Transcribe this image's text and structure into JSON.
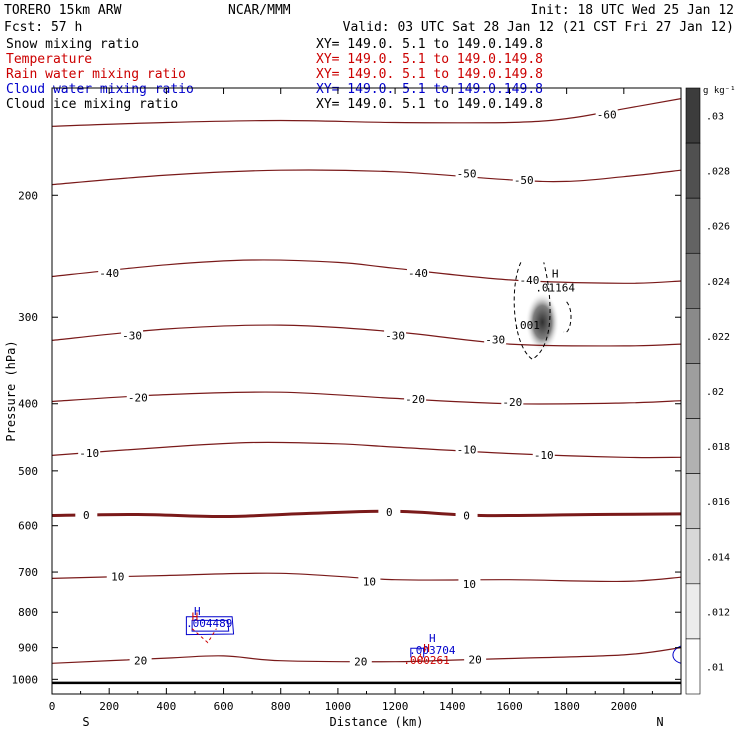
{
  "header": {
    "model_line": "TORERO  15km ARW",
    "fcst_line": "Fcst:   57 h",
    "org": "NCAR/MMM",
    "init": "Init: 18 UTC Wed 25 Jan 12",
    "valid": "Valid: 03 UTC Sat 28 Jan 12 (21 CST Fri 27 Jan 12)",
    "fields": [
      {
        "name": "Snow mixing ratio",
        "xy": "XY= 149.0.  5.1 to 149.0.149.8",
        "color": "#000000"
      },
      {
        "name": "Temperature",
        "xy": "XY= 149.0.  5.1 to 149.0.149.8",
        "color": "#cc0000"
      },
      {
        "name": "Rain water mixing ratio",
        "xy": "XY= 149.0.  5.1 to 149.0.149.8",
        "color": "#cc0000"
      },
      {
        "name": "Cloud water mixing ratio",
        "xy": "XY= 149.0.  5.1 to 149.0.149.8",
        "color": "#0000cc"
      },
      {
        "name": "Cloud ice mixing ratio",
        "xy": "XY= 149.0.  5.1 to 149.0.149.8",
        "color": "#000000"
      }
    ]
  },
  "chart_data": {
    "type": "contour-cross-section",
    "xlabel": "Distance (km)",
    "ylabel": "Pressure (hPa)",
    "x_ticks": [
      0,
      200,
      400,
      600,
      800,
      1000,
      1200,
      1400,
      1600,
      1800,
      2000
    ],
    "xlim": [
      0,
      2200
    ],
    "y_ticks": [
      200,
      300,
      400,
      500,
      600,
      700,
      800,
      900,
      1000
    ],
    "y_scale": "log",
    "ylim": [
      1050,
      140
    ],
    "left_end": "S",
    "right_end": "N",
    "temperature_contours": [
      {
        "level": -60,
        "p": [
          [
            0,
            159
          ],
          [
            400,
            157
          ],
          [
            800,
            156
          ],
          [
            1200,
            157
          ],
          [
            1600,
            157
          ],
          [
            1800,
            155
          ],
          [
            2000,
            150
          ],
          [
            2200,
            145
          ]
        ]
      },
      {
        "level": -50,
        "p": [
          [
            0,
            193
          ],
          [
            400,
            187
          ],
          [
            800,
            184
          ],
          [
            1200,
            185
          ],
          [
            1600,
            190
          ],
          [
            1800,
            191
          ],
          [
            2000,
            188
          ],
          [
            2200,
            184
          ]
        ]
      },
      {
        "level": -40,
        "p": [
          [
            0,
            262
          ],
          [
            400,
            252
          ],
          [
            700,
            248
          ],
          [
            1000,
            250
          ],
          [
            1200,
            255
          ],
          [
            1600,
            265
          ],
          [
            2000,
            268
          ],
          [
            2200,
            266
          ]
        ]
      },
      {
        "level": -30,
        "p": [
          [
            0,
            324
          ],
          [
            400,
            312
          ],
          [
            800,
            308
          ],
          [
            1200,
            315
          ],
          [
            1600,
            328
          ],
          [
            2000,
            330
          ],
          [
            2200,
            328
          ]
        ]
      },
      {
        "level": -20,
        "p": [
          [
            0,
            397
          ],
          [
            400,
            388
          ],
          [
            800,
            385
          ],
          [
            1200,
            393
          ],
          [
            1600,
            400
          ],
          [
            2000,
            399
          ],
          [
            2200,
            396
          ]
        ]
      },
      {
        "level": -10,
        "p": [
          [
            0,
            475
          ],
          [
            400,
            462
          ],
          [
            700,
            455
          ],
          [
            1000,
            457
          ],
          [
            1200,
            462
          ],
          [
            1600,
            472
          ],
          [
            2000,
            478
          ],
          [
            2200,
            478
          ]
        ]
      },
      {
        "level": 0,
        "p": [
          [
            0,
            580
          ],
          [
            300,
            578
          ],
          [
            600,
            582
          ],
          [
            900,
            576
          ],
          [
            1200,
            572
          ],
          [
            1500,
            580
          ],
          [
            1900,
            578
          ],
          [
            2200,
            577
          ]
        ]
      },
      {
        "level": 10,
        "p": [
          [
            0,
            715
          ],
          [
            400,
            708
          ],
          [
            800,
            703
          ],
          [
            1200,
            718
          ],
          [
            1600,
            718
          ],
          [
            2000,
            722
          ],
          [
            2200,
            712
          ]
        ]
      },
      {
        "level": 20,
        "p": [
          [
            0,
            948
          ],
          [
            400,
            932
          ],
          [
            600,
            925
          ],
          [
            800,
            940
          ],
          [
            1200,
            943
          ],
          [
            1400,
            938
          ],
          [
            1600,
            933
          ],
          [
            2000,
            922
          ],
          [
            2200,
            900
          ]
        ]
      }
    ],
    "temperature_labels": [
      {
        "text": "-60",
        "x": 1940,
        "p": 153
      },
      {
        "text": "-50",
        "x": 1450,
        "p": 186
      },
      {
        "text": "-50",
        "x": 1650,
        "p": 190
      },
      {
        "text": "-40",
        "x": 200,
        "p": 259
      },
      {
        "text": "-40",
        "x": 1280,
        "p": 259
      },
      {
        "text": "-40",
        "x": 1670,
        "p": 265
      },
      {
        "text": "-30",
        "x": 280,
        "p": 319
      },
      {
        "text": "-30",
        "x": 1200,
        "p": 319
      },
      {
        "text": "-30",
        "x": 1550,
        "p": 323
      },
      {
        "text": "-20",
        "x": 300,
        "p": 392
      },
      {
        "text": "-20",
        "x": 1270,
        "p": 394
      },
      {
        "text": "-20",
        "x": 1610,
        "p": 398
      },
      {
        "text": "-10",
        "x": 130,
        "p": 471
      },
      {
        "text": "-10",
        "x": 1450,
        "p": 466
      },
      {
        "text": "-10",
        "x": 1720,
        "p": 474
      },
      {
        "text": "0",
        "x": 120,
        "p": 579
      },
      {
        "text": "0",
        "x": 1180,
        "p": 573
      },
      {
        "text": "0",
        "x": 1450,
        "p": 580
      },
      {
        "text": "10",
        "x": 230,
        "p": 711
      },
      {
        "text": "10",
        "x": 1110,
        "p": 722
      },
      {
        "text": "10",
        "x": 1460,
        "p": 728
      },
      {
        "text": "20",
        "x": 310,
        "p": 940
      },
      {
        "text": "20",
        "x": 1080,
        "p": 942
      },
      {
        "text": "20",
        "x": 1480,
        "p": 936
      }
    ],
    "snow_maxima": [
      {
        "label": "H",
        "value": ".01164",
        "x": 1760,
        "p": 268
      }
    ],
    "snow_contour_label": {
      "text": ".001",
      "x": 1660,
      "p": 312
    },
    "rain_maxima": [
      {
        "label": "H",
        "value": ".000261",
        "x": 1310,
        "p": 950
      },
      {
        "label": "H",
        "value": "",
        "x": 500,
        "p": 822
      }
    ],
    "cloud_water_maxima": [
      {
        "label": "H",
        "value": ".004489",
        "x": 550,
        "p": 841
      },
      {
        "label": "H",
        "value": ".003704",
        "x": 1330,
        "p": 920
      }
    ],
    "colorbar": {
      "unit": "g kg⁻¹",
      "ticks": [
        ".03",
        ".028",
        ".026",
        ".024",
        ".022",
        ".02",
        ".018",
        ".016",
        ".014",
        ".012",
        ".01"
      ]
    }
  }
}
